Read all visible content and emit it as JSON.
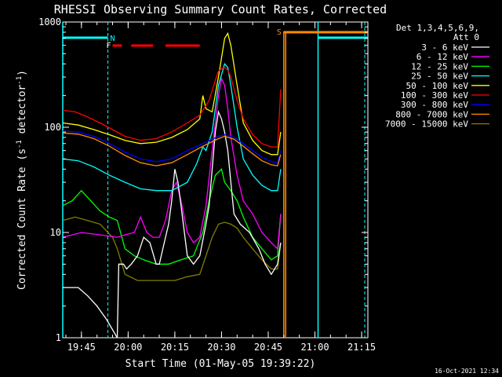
{
  "chart_data": {
    "type": "line",
    "title": "RHESSI Observing Summary Count Rates, Corrected",
    "ylabel_main": "Corrected Count Rate (s",
    "ylabel_sup1": "-1",
    "ylabel_mid": " detector",
    "ylabel_sup2": "-1",
    "ylabel_end": ")",
    "xlabel": "Start Time (01-May-05 19:39:22)",
    "timestamp": "16-Oct-2021 12:34",
    "yscale": "log",
    "ylim": [
      1,
      1000
    ],
    "xlim_minutes_since_1939": [
      0,
      98
    ],
    "y_ticks": [
      {
        "value": 1,
        "label": "1"
      },
      {
        "value": 10,
        "label": "10"
      },
      {
        "value": 100,
        "label": "100"
      },
      {
        "value": 1000,
        "label": "1000"
      }
    ],
    "x_ticks": [
      {
        "value": 6,
        "label": "19:45"
      },
      {
        "value": 21,
        "label": "20:00"
      },
      {
        "value": 36,
        "label": "20:15"
      },
      {
        "value": 51,
        "label": "20:30"
      },
      {
        "value": 66,
        "label": "20:45"
      },
      {
        "value": 81,
        "label": "21:00"
      },
      {
        "value": 96,
        "label": "21:15"
      }
    ],
    "legend_header": [
      "Det 1,3,4,5,6,9,",
      "Att 0"
    ],
    "series": [
      {
        "name": "3 - 6 keV",
        "color": "#ffffff",
        "x": [
          0,
          5,
          8,
          11,
          14,
          17.5,
          18,
          19.5,
          20.5,
          22,
          24,
          26,
          28,
          30,
          31,
          33,
          34,
          35,
          36,
          37,
          38,
          40,
          42,
          44,
          46,
          47,
          48,
          49,
          50,
          51,
          52,
          53,
          54,
          55,
          57,
          60,
          63,
          65,
          67,
          69,
          70
        ],
        "y": [
          3,
          3,
          2.5,
          2,
          1.5,
          1,
          5,
          5,
          4.5,
          5,
          6,
          9,
          8,
          5,
          5,
          9,
          12,
          20,
          40,
          30,
          18,
          6,
          5,
          6,
          12,
          18,
          40,
          90,
          140,
          120,
          90,
          60,
          30,
          15,
          12,
          10,
          7,
          5,
          4,
          5,
          8
        ]
      },
      {
        "name": "6 - 12 keV",
        "color": "#ff00ff",
        "x": [
          0,
          6,
          12,
          17.5,
          20,
          23,
          25,
          27,
          29,
          31,
          33,
          35,
          36.5,
          38,
          40,
          42,
          44,
          46,
          48,
          50,
          51,
          52,
          53,
          54,
          56,
          58,
          61,
          64,
          67,
          69,
          70
        ],
        "y": [
          9,
          10,
          9.5,
          9,
          9.5,
          10,
          14,
          10,
          9,
          9,
          13,
          25,
          30,
          20,
          10,
          8,
          9,
          18,
          60,
          200,
          290,
          250,
          150,
          80,
          35,
          20,
          15,
          10,
          8,
          7,
          15
        ]
      },
      {
        "name": "12 - 25 keV",
        "color": "#00ff00",
        "x": [
          0,
          3,
          6,
          9,
          12,
          15,
          17.5,
          20,
          23,
          26,
          30,
          34,
          38,
          42,
          45,
          47,
          49,
          51,
          52,
          54,
          56,
          58,
          61,
          64,
          67,
          69,
          70
        ],
        "y": [
          18,
          20,
          25,
          20,
          16,
          14,
          13,
          7,
          6,
          5.5,
          5,
          5,
          5.5,
          6,
          10,
          20,
          35,
          40,
          30,
          25,
          20,
          14,
          9,
          7,
          5.5,
          6,
          15
        ]
      },
      {
        "name": "25 - 50 keV",
        "color": "#00ffff",
        "x": [
          0,
          5,
          10,
          15,
          20,
          25,
          30,
          35,
          40,
          43,
          45,
          46,
          48,
          50,
          52,
          53,
          54,
          56,
          58,
          61,
          64,
          67,
          69,
          70
        ],
        "y": [
          50,
          48,
          42,
          35,
          30,
          26,
          25,
          25,
          30,
          45,
          65,
          60,
          90,
          250,
          400,
          370,
          250,
          100,
          50,
          35,
          28,
          25,
          25,
          40
        ]
      },
      {
        "name": "50 - 100 keV",
        "color": "#ffff00",
        "x": [
          0,
          5,
          10,
          15,
          20,
          25,
          30,
          35,
          40,
          44,
          45,
          46,
          48,
          50,
          52,
          53,
          54,
          56,
          58,
          61,
          64,
          67,
          69,
          70
        ],
        "y": [
          110,
          105,
          95,
          85,
          75,
          70,
          72,
          80,
          95,
          120,
          200,
          150,
          140,
          300,
          700,
          780,
          600,
          250,
          110,
          75,
          60,
          55,
          55,
          90
        ]
      },
      {
        "name": "100 - 300 keV",
        "color": "#ff0000",
        "x": [
          0,
          4,
          8,
          12,
          16,
          20,
          25,
          30,
          35,
          40,
          44,
          47,
          49,
          50,
          51,
          52,
          53,
          54,
          56,
          58,
          61,
          64,
          67,
          69,
          70
        ],
        "y": [
          145,
          140,
          125,
          110,
          95,
          82,
          75,
          78,
          90,
          110,
          130,
          180,
          280,
          340,
          360,
          370,
          350,
          300,
          180,
          120,
          85,
          70,
          65,
          65,
          230
        ]
      },
      {
        "name": "300 - 800 keV",
        "color": "#0000ff",
        "x": [
          0,
          5,
          10,
          15,
          20,
          25,
          30,
          35,
          40,
          45,
          50,
          52,
          55,
          58,
          61,
          64,
          67,
          69,
          70
        ],
        "y": [
          92,
          90,
          82,
          70,
          58,
          50,
          47,
          50,
          60,
          70,
          82,
          85,
          80,
          70,
          60,
          52,
          47,
          46,
          60
        ]
      },
      {
        "name": "800 - 7000 keV",
        "color": "#ff8c00",
        "x": [
          0,
          5,
          10,
          15,
          20,
          25,
          30,
          35,
          40,
          45,
          50,
          52,
          55,
          58,
          61,
          64,
          67,
          69,
          70
        ],
        "y": [
          88,
          86,
          78,
          66,
          54,
          46,
          43,
          46,
          55,
          66,
          78,
          82,
          77,
          66,
          56,
          48,
          44,
          43,
          55
        ]
      },
      {
        "name": "7000 - 15000 keV",
        "color": "#808000",
        "x": [
          0,
          4,
          8,
          12,
          16,
          17.5,
          20,
          24,
          28,
          32,
          36,
          40,
          44,
          46,
          48,
          50,
          52,
          54,
          56,
          58,
          61,
          64,
          67,
          69,
          70
        ],
        "y": [
          13,
          14,
          13,
          12,
          9,
          7,
          4,
          3.5,
          3.5,
          3.5,
          3.5,
          3.8,
          4,
          6,
          9,
          12,
          12.5,
          12,
          11,
          9,
          7,
          5.5,
          4.5,
          4.5,
          8
        ]
      }
    ],
    "annotations": {
      "night_marker": "N",
      "flare_marker": "F",
      "saa_marker": "S",
      "night_color": "#00ffff",
      "flare_color": "#ff0000",
      "saa_color": "#ff8c00",
      "night_intervals": [
        [
          0,
          14.5
        ],
        [
          82,
          98
        ]
      ],
      "saa_interval": [
        71,
        98
      ],
      "flare_segments": [
        [
          16,
          19
        ],
        [
          22,
          29
        ],
        [
          33,
          44
        ]
      ],
      "night_dashed_lines": [
        14.5,
        97
      ],
      "night_solid_lines": [
        0,
        82
      ],
      "saa_lines": [
        71,
        71.6
      ]
    }
  }
}
